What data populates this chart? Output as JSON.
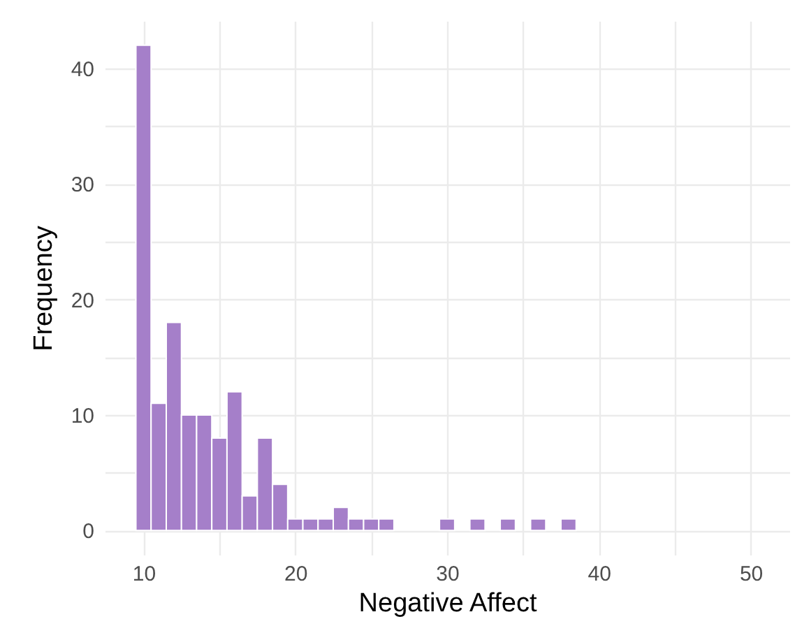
{
  "chart_data": {
    "type": "histogram",
    "xlabel": "Negative Affect",
    "ylabel": "Frequency",
    "color": "#a57fc9",
    "bins": [
      9.5,
      10.5,
      11.5,
      12.5,
      13.5,
      14.5,
      15.5,
      16.5,
      17.5,
      18.5,
      19.5,
      20.5,
      21.5,
      22.5,
      23.5,
      24.5,
      25.5,
      26.5,
      27.5,
      28.5,
      29.5,
      30.5,
      31.5,
      32.5,
      33.5,
      34.5,
      35.5,
      36.5,
      37.5,
      38.5,
      39.5,
      40.5,
      41.5,
      42.5,
      43.5,
      44.5,
      45.5,
      46.5,
      47.5,
      48.5,
      49.5,
      50.5
    ],
    "values": [
      42,
      11,
      18,
      10,
      10,
      8,
      12,
      3,
      8,
      4,
      1,
      1,
      1,
      2,
      1,
      1,
      1,
      0,
      0,
      0,
      1,
      0,
      1,
      0,
      1,
      0,
      1,
      0,
      1,
      0,
      0,
      0,
      0,
      0,
      0,
      0,
      0,
      0,
      0,
      0,
      0
    ],
    "xlim": [
      7.45,
      52.55
    ],
    "xticks": [
      10,
      {
        "value": 15,
        "label": null
      },
      20,
      {
        "value": 25,
        "label": null
      },
      30,
      {
        "value": 35,
        "label": null
      },
      40,
      {
        "value": 45,
        "label": null
      },
      50
    ],
    "ylim": [
      -2.1,
      44.1
    ],
    "yticks": [
      0,
      {
        "value": 5,
        "label": null
      },
      10,
      {
        "value": 15,
        "label": null
      },
      20,
      {
        "value": 25,
        "label": null
      },
      30,
      {
        "value": 35,
        "label": null
      },
      40
    ],
    "grid": true
  }
}
